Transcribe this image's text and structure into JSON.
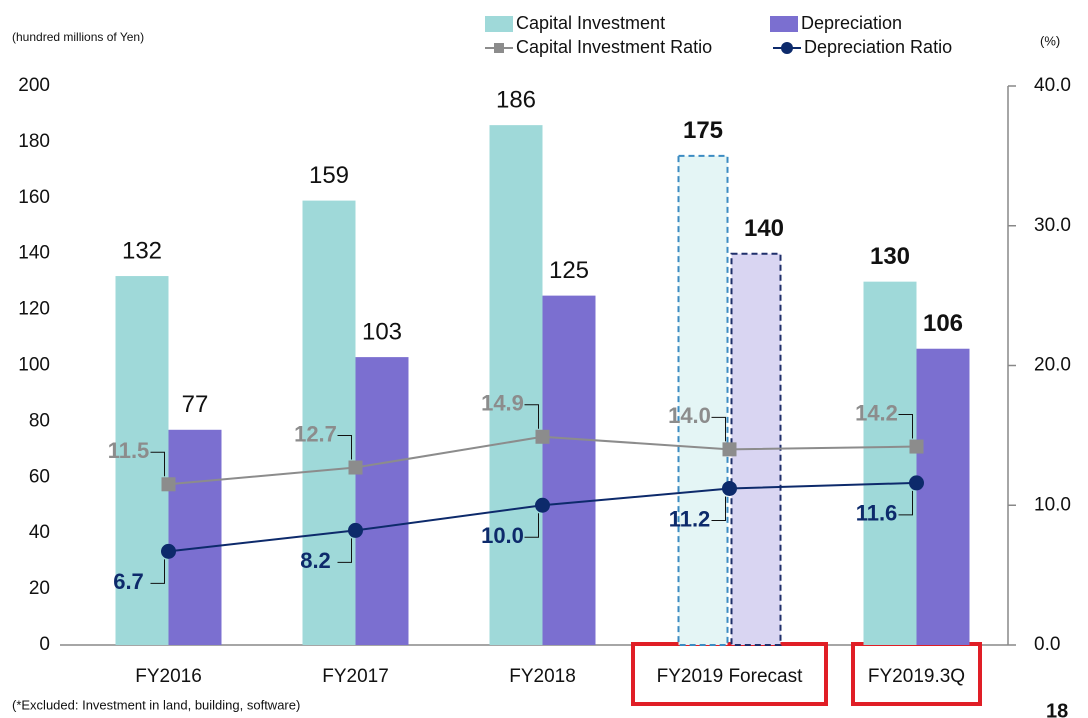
{
  "chart_data": {
    "type": "bar_line",
    "unit_label": "(hundred millions of Yen)",
    "y2_unit_label": "(%)",
    "footnote": "(*Excluded: Investment in land, building, software)",
    "page_number": "18",
    "categories": [
      "FY2016",
      "FY2017",
      "FY2018",
      "FY2019 Forecast",
      "FY2019.3Q"
    ],
    "highlight": [
      3,
      4
    ],
    "forecast": [
      3
    ],
    "series": [
      {
        "name": "Capital Investment",
        "kind": "bar",
        "color": "#9fd9d9",
        "values": [
          132,
          159,
          186,
          175,
          130
        ]
      },
      {
        "name": "Depreciation",
        "kind": "bar",
        "color": "#7b6fd0",
        "values": [
          77,
          103,
          125,
          140,
          106
        ]
      },
      {
        "name": "Capital Investment Ratio",
        "kind": "line",
        "marker": "square",
        "axis": "y2",
        "color": "#8c8c8c",
        "values": [
          11.5,
          12.7,
          14.9,
          14.0,
          14.2
        ],
        "value_labels": [
          "11.5",
          "12.7",
          "14.9",
          "14.0",
          "14.2"
        ]
      },
      {
        "name": "Depreciation Ratio",
        "kind": "line",
        "marker": "circle",
        "axis": "y2",
        "color": "#0d2a6b",
        "values": [
          6.7,
          8.2,
          10.0,
          11.2,
          11.6
        ],
        "value_labels": [
          "6.7",
          "8.2",
          "10.0",
          "11.2",
          "11.6"
        ]
      }
    ],
    "ylim": [
      0,
      200
    ],
    "yticks": [
      0,
      20,
      40,
      60,
      80,
      100,
      120,
      140,
      160,
      180,
      200
    ],
    "y2lim": [
      0,
      40
    ],
    "y2ticks": [
      {
        "value": 0,
        "label": "0.0"
      },
      {
        "value": 10,
        "label": "10.0"
      },
      {
        "value": 20,
        "label": "20.0"
      },
      {
        "value": 30,
        "label": "30.0"
      },
      {
        "value": 40,
        "label": "40.0"
      }
    ]
  }
}
